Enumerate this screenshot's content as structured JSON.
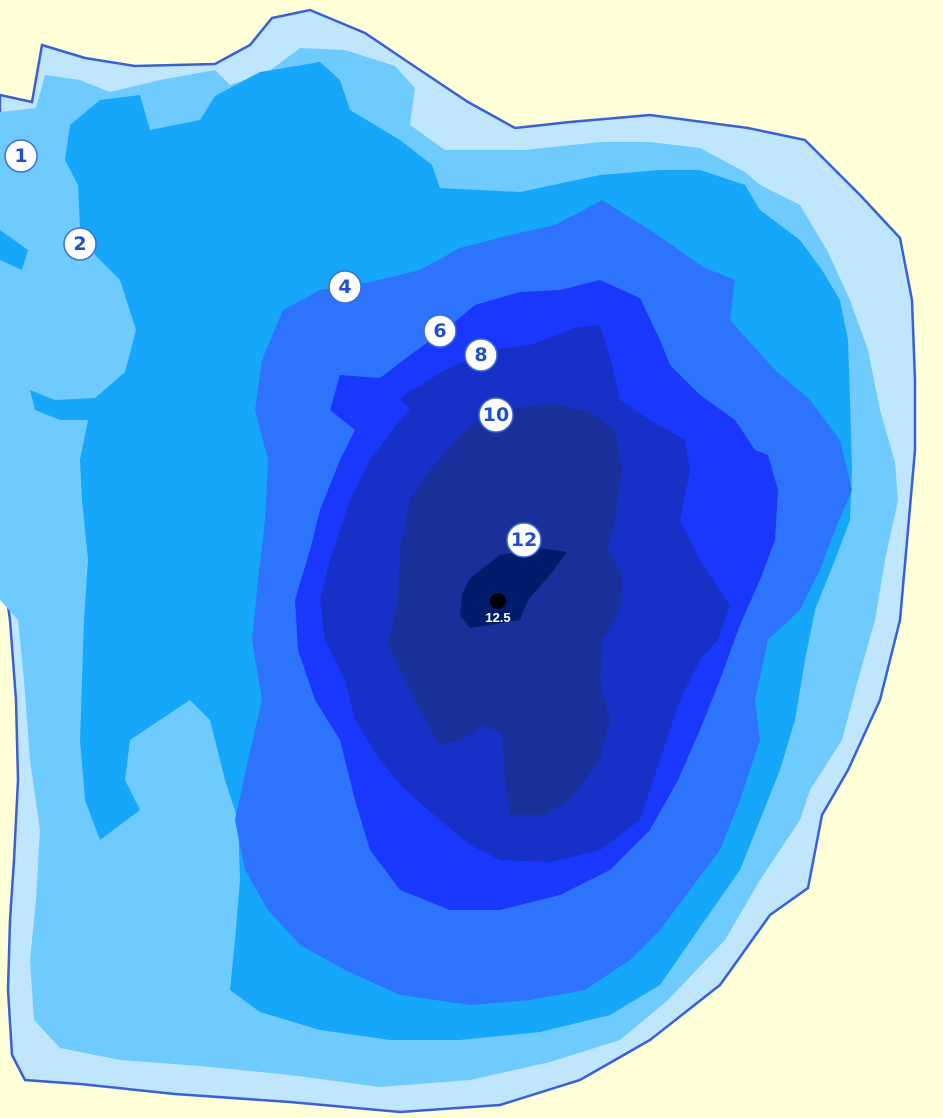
{
  "map": {
    "colors": {
      "land": "#ffffd8",
      "depth_0_1": "#bfe6fd",
      "depth_1_2": "#6fcbfd",
      "depth_2_4": "#16a7fb",
      "depth_4_6": "#2e73fb",
      "depth_6_8": "#1a38fb",
      "depth_8_10": "#1630c8",
      "depth_10_12": "#19309a",
      "depth_12_plus": "#001d6b",
      "shoreline": "#3a5fd8"
    },
    "depth_labels": [
      {
        "id": "1",
        "text": "1"
      },
      {
        "id": "2",
        "text": "2"
      },
      {
        "id": "4",
        "text": "4"
      },
      {
        "id": "6",
        "text": "6"
      },
      {
        "id": "8",
        "text": "8"
      },
      {
        "id": "10",
        "text": "10"
      },
      {
        "id": "12",
        "text": "12"
      }
    ],
    "max_depth": {
      "text": "12.5"
    }
  }
}
